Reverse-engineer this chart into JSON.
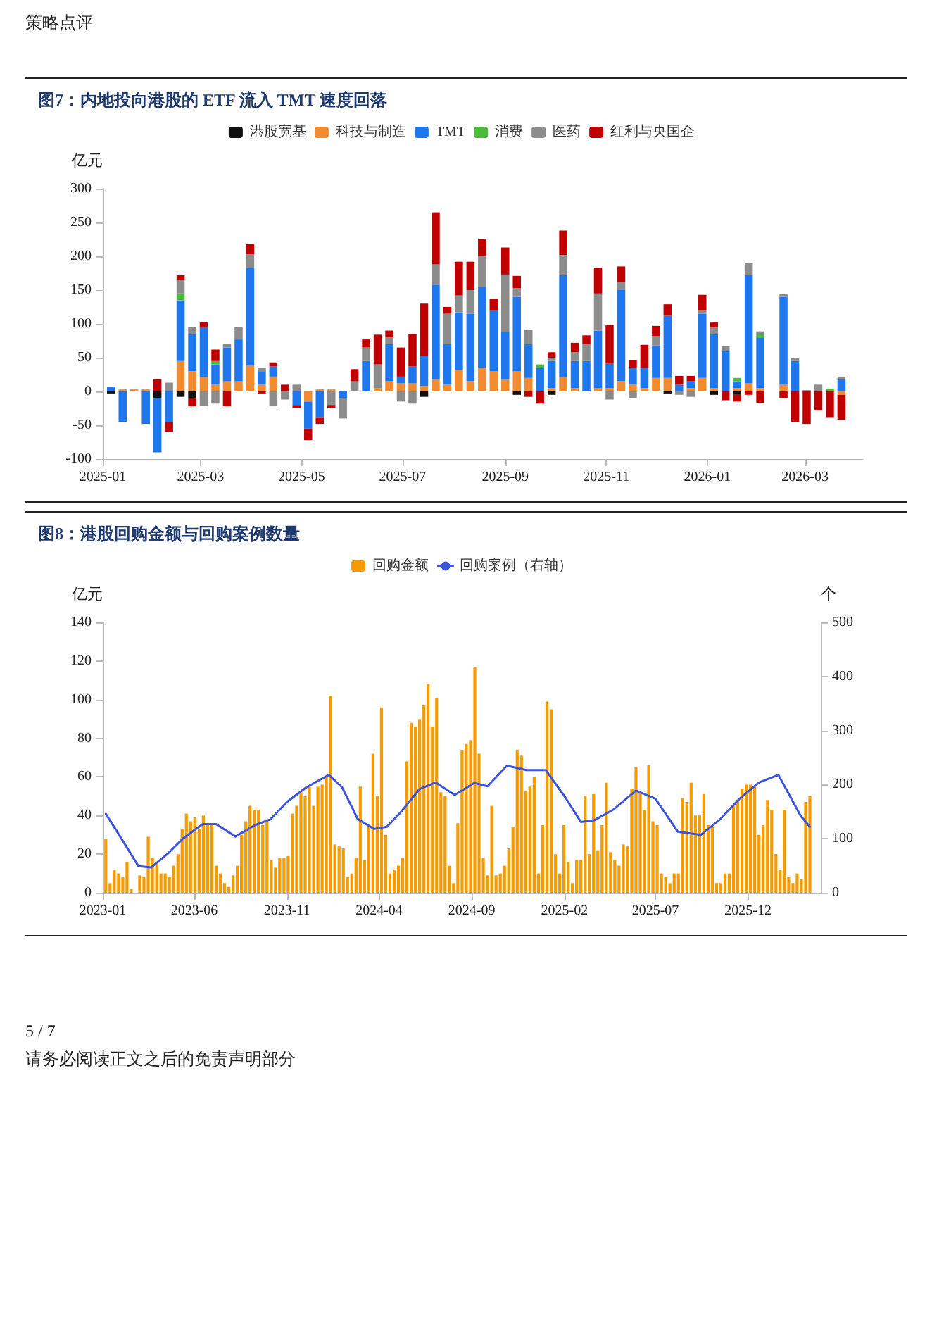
{
  "chart_data": [
    {
      "type": "bar",
      "title": "图7：内地投向港股的 ETF 流入 TMT 速度回落",
      "annotations": [
        "策略点评"
      ],
      "ylabel": "亿元",
      "stacked": true,
      "legend": "top",
      "x": [
        "2025-01-06",
        "2025-01-13",
        "2025-01-20",
        "2025-01-27",
        "2025-02-03",
        "2025-02-10",
        "2025-02-17",
        "2025-02-24",
        "2025-03-03",
        "2025-03-10",
        "2025-03-17",
        "2025-03-24",
        "2025-03-31",
        "2025-04-07",
        "2025-04-14",
        "2025-04-21",
        "2025-04-28",
        "2025-05-05",
        "2025-05-12",
        "2025-05-19",
        "2025-05-26",
        "2025-06-02",
        "2025-06-09",
        "2025-06-16",
        "2025-06-23",
        "2025-06-30",
        "2025-07-07",
        "2025-07-14",
        "2025-07-21",
        "2025-07-28",
        "2025-08-04",
        "2025-08-11",
        "2025-08-18",
        "2025-08-25",
        "2025-09-01",
        "2025-09-08",
        "2025-09-15",
        "2025-09-22",
        "2025-09-29",
        "2025-10-06",
        "2025-10-13",
        "2025-10-20",
        "2025-10-27",
        "2025-11-03",
        "2025-11-10",
        "2025-11-17",
        "2025-11-24",
        "2025-12-01",
        "2025-12-08",
        "2025-12-15",
        "2025-12-22",
        "2025-12-29",
        "2026-01-05",
        "2026-01-12",
        "2026-01-19",
        "2026-01-26",
        "2026-02-02",
        "2026-02-09",
        "2026-02-16",
        "2026-02-23",
        "2026-03-02",
        "2026-03-09",
        "2026-03-16",
        "2026-03-23"
      ],
      "xlim": [
        "2025-01-01",
        "2026-04-05"
      ],
      "xticks": [
        "2025-01",
        "2025-03",
        "2025-05",
        "2025-07",
        "2025-09",
        "2025-11",
        "2026-01",
        "2026-03"
      ],
      "ylim": [
        -100,
        300
      ],
      "yticks": [
        -100,
        -50,
        0,
        50,
        100,
        150,
        200,
        250,
        300
      ],
      "series": [
        {
          "name": "港股宽基",
          "color": "#111111",
          "values": [
            -3,
            0,
            0,
            0,
            -10,
            0,
            -8,
            -10,
            0,
            0,
            0,
            0,
            0,
            0,
            0,
            0,
            0,
            0,
            0,
            0,
            0,
            0,
            0,
            0,
            0,
            0,
            0,
            -8,
            0,
            0,
            0,
            0,
            0,
            0,
            0,
            -5,
            0,
            0,
            -5,
            0,
            0,
            0,
            0,
            0,
            0,
            0,
            0,
            0,
            -3,
            0,
            0,
            0,
            -5,
            0,
            -5,
            0,
            0,
            0,
            0,
            0,
            0,
            0,
            0,
            0
          ]
        },
        {
          "name": "科技与制造",
          "color": "#f28a30",
          "values": [
            0,
            3,
            3,
            3,
            0,
            0,
            45,
            30,
            22,
            10,
            15,
            15,
            38,
            10,
            22,
            0,
            0,
            -15,
            3,
            3,
            0,
            0,
            0,
            5,
            15,
            12,
            12,
            8,
            18,
            10,
            32,
            15,
            35,
            30,
            18,
            30,
            20,
            0,
            5,
            22,
            5,
            0,
            5,
            5,
            15,
            10,
            5,
            20,
            20,
            0,
            5,
            20,
            5,
            0,
            5,
            12,
            5,
            0,
            10,
            0,
            0,
            0,
            0,
            -5
          ]
        },
        {
          "name": "TMT",
          "color": "#1f77f0",
          "values": [
            7,
            -45,
            0,
            -48,
            -80,
            -45,
            90,
            55,
            73,
            30,
            50,
            62,
            145,
            20,
            15,
            0,
            -20,
            -40,
            -38,
            0,
            -10,
            0,
            45,
            0,
            55,
            10,
            25,
            45,
            140,
            60,
            85,
            100,
            120,
            90,
            70,
            110,
            50,
            35,
            40,
            150,
            40,
            45,
            85,
            36,
            135,
            25,
            30,
            48,
            92,
            10,
            10,
            95,
            80,
            60,
            10,
            160,
            75,
            0,
            130,
            45,
            0,
            0,
            0,
            18
          ]
        },
        {
          "name": "消费",
          "color": "#4cbb3c",
          "values": [
            0,
            0,
            0,
            0,
            0,
            0,
            10,
            0,
            0,
            5,
            0,
            0,
            0,
            0,
            0,
            0,
            0,
            0,
            0,
            0,
            0,
            0,
            0,
            0,
            0,
            0,
            0,
            0,
            0,
            0,
            0,
            0,
            0,
            0,
            0,
            0,
            0,
            5,
            0,
            0,
            0,
            0,
            0,
            0,
            0,
            0,
            0,
            0,
            0,
            0,
            0,
            0,
            0,
            0,
            5,
            0,
            5,
            0,
            0,
            0,
            0,
            0,
            4,
            0
          ]
        },
        {
          "name": "医药",
          "color": "#8c8c8c",
          "values": [
            0,
            0,
            0,
            0,
            0,
            13,
            20,
            10,
            -22,
            -18,
            5,
            18,
            20,
            5,
            -22,
            -12,
            10,
            0,
            0,
            -20,
            -30,
            15,
            20,
            35,
            10,
            -15,
            -18,
            0,
            30,
            45,
            25,
            35,
            45,
            0,
            85,
            13,
            21,
            0,
            5,
            30,
            13,
            25,
            55,
            -12,
            12,
            -10,
            0,
            14,
            0,
            -5,
            -8,
            5,
            10,
            7,
            0,
            18,
            4,
            0,
            4,
            4,
            2,
            10,
            0,
            4
          ]
        },
        {
          "name": "红利与央国企",
          "color": "#c00000",
          "values": [
            0,
            0,
            0,
            0,
            18,
            -15,
            7,
            -12,
            7,
            17,
            -22,
            0,
            15,
            -3,
            6,
            10,
            -5,
            -17,
            -10,
            -5,
            0,
            18,
            13,
            44,
            10,
            43,
            48,
            77,
            77,
            10,
            50,
            42,
            26,
            17,
            40,
            18,
            -8,
            -18,
            8,
            36,
            14,
            13,
            38,
            58,
            23,
            11,
            34,
            15,
            17,
            13,
            8,
            23,
            7,
            -13,
            -10,
            -5,
            -17,
            0,
            -10,
            -45,
            -48,
            -28,
            -38,
            -37
          ]
        }
      ]
    },
    {
      "type": "bar",
      "title": "图8：港股回购金额与回购案例数量",
      "annotations": [
        "5 / 7",
        "请务必阅读正文之后的免责声明部分"
      ],
      "ylabel": "亿元",
      "y2label": "个",
      "legend": "top",
      "x": [
        "2023-01-06",
        "2023-01-13",
        "2023-01-20",
        "2023-01-27",
        "2023-02-03",
        "2023-02-10",
        "2023-02-17",
        "2023-02-24",
        "2023-03-03",
        "2023-03-10",
        "2023-03-17",
        "2023-03-24",
        "2023-03-31",
        "2023-04-07",
        "2023-04-14",
        "2023-04-21",
        "2023-04-28",
        "2023-05-05",
        "2023-05-12",
        "2023-05-19",
        "2023-05-26",
        "2023-06-02",
        "2023-06-09",
        "2023-06-16",
        "2023-06-23",
        "2023-06-30",
        "2023-07-07",
        "2023-07-14",
        "2023-07-21",
        "2023-07-28",
        "2023-08-04",
        "2023-08-11",
        "2023-08-18",
        "2023-08-25",
        "2023-09-01",
        "2023-09-08",
        "2023-09-15",
        "2023-09-22",
        "2023-09-29",
        "2023-10-06",
        "2023-10-13",
        "2023-10-20",
        "2023-10-27",
        "2023-11-03",
        "2023-11-10",
        "2023-11-17",
        "2023-11-24",
        "2023-12-01",
        "2023-12-08",
        "2023-12-15",
        "2023-12-22",
        "2023-12-29",
        "2024-01-05",
        "2024-01-12",
        "2024-01-19",
        "2024-01-26",
        "2024-02-02",
        "2024-02-09",
        "2024-02-16",
        "2024-02-23",
        "2024-03-01",
        "2024-03-08",
        "2024-03-15",
        "2024-03-22",
        "2024-03-29",
        "2024-04-05",
        "2024-04-12",
        "2024-04-19",
        "2024-04-26",
        "2024-05-03",
        "2024-05-10",
        "2024-05-17",
        "2024-05-24",
        "2024-05-31",
        "2024-06-07",
        "2024-06-14",
        "2024-06-21",
        "2024-06-28",
        "2024-07-05",
        "2024-07-12",
        "2024-07-19",
        "2024-07-26",
        "2024-08-02",
        "2024-08-09",
        "2024-08-16",
        "2024-08-23",
        "2024-08-30",
        "2024-09-06",
        "2024-09-13",
        "2024-09-20",
        "2024-09-27",
        "2024-10-04",
        "2024-10-11",
        "2024-10-18",
        "2024-10-25",
        "2024-11-01",
        "2024-11-08",
        "2024-11-15",
        "2024-11-22",
        "2024-11-29",
        "2024-12-06",
        "2024-12-13",
        "2024-12-20",
        "2024-12-27",
        "2025-01-03",
        "2025-01-10",
        "2025-01-17",
        "2025-01-24",
        "2025-01-31",
        "2025-02-07",
        "2025-02-14",
        "2025-02-21",
        "2025-02-28",
        "2025-03-07",
        "2025-03-14",
        "2025-03-21",
        "2025-03-28",
        "2025-04-04",
        "2025-04-11",
        "2025-04-18",
        "2025-04-25",
        "2025-05-02",
        "2025-05-09",
        "2025-05-16",
        "2025-05-23",
        "2025-05-30",
        "2025-06-06",
        "2025-06-13",
        "2025-06-20",
        "2025-06-27",
        "2025-07-04",
        "2025-07-11",
        "2025-07-18",
        "2025-07-25",
        "2025-08-01",
        "2025-08-08",
        "2025-08-15",
        "2025-08-22",
        "2025-08-29",
        "2025-09-05",
        "2025-09-12",
        "2025-09-19",
        "2025-09-26",
        "2025-10-03",
        "2025-10-10",
        "2025-10-17",
        "2025-10-24",
        "2025-10-31",
        "2025-11-07",
        "2025-11-14",
        "2025-11-21",
        "2025-11-28",
        "2025-12-05",
        "2025-12-12",
        "2025-12-19",
        "2025-12-26",
        "2026-01-02",
        "2026-01-09",
        "2026-01-16",
        "2026-01-23",
        "2026-01-30",
        "2026-02-06",
        "2026-02-13",
        "2026-02-20",
        "2026-02-27",
        "2026-03-06",
        "2026-03-13"
      ],
      "xlim": [
        "2023-01-01",
        "2026-03-31"
      ],
      "xticks": [
        "2023-01",
        "2023-06",
        "2023-11",
        "2024-04",
        "2024-09",
        "2025-02",
        "2025-07",
        "2025-12"
      ],
      "ylim": [
        0,
        140
      ],
      "yticks": [
        0,
        20,
        40,
        60,
        80,
        100,
        120,
        140
      ],
      "y2lim": [
        0,
        500
      ],
      "y2ticks": [
        0,
        100,
        200,
        300,
        400,
        500
      ],
      "series": [
        {
          "name": "回购金额",
          "color": "#f59b00",
          "values": [
            28,
            5,
            12,
            10,
            8,
            16,
            2,
            0,
            9,
            8,
            29,
            18,
            15,
            10,
            10,
            8,
            14,
            20,
            33,
            41,
            37,
            39,
            33,
            40,
            35,
            35,
            14,
            10,
            5,
            3,
            9,
            14,
            30,
            37,
            45,
            43,
            43,
            35,
            38,
            17,
            13,
            18,
            18,
            19,
            41,
            45,
            52,
            50,
            55,
            45,
            55,
            56,
            60,
            102,
            25,
            24,
            23,
            8,
            10,
            18,
            55,
            17,
            35,
            72,
            50,
            96,
            30,
            10,
            12,
            14,
            18,
            68,
            88,
            86,
            90,
            97,
            108,
            86,
            101,
            52,
            50,
            14,
            5,
            36,
            74,
            77,
            79,
            117,
            72,
            18,
            9,
            45,
            9,
            10,
            14,
            23,
            34,
            74,
            71,
            53,
            55,
            60,
            10,
            35,
            99,
            95,
            20,
            10,
            35,
            16,
            5,
            17,
            17,
            50,
            20,
            51,
            22,
            35,
            57,
            21,
            17,
            14,
            25,
            24,
            54,
            65,
            52,
            43,
            66,
            37,
            35,
            10,
            8,
            5,
            10,
            10,
            49,
            47,
            57,
            40,
            40,
            51,
            35,
            34,
            5,
            5,
            10,
            10,
            45,
            48,
            54,
            56,
            56,
            55,
            30,
            35,
            48,
            43,
            20,
            12,
            43,
            8,
            5,
            10,
            7,
            47,
            50
          ]
        },
        {
          "name": "回购案例（右轴）",
          "type": "line",
          "axis": "y2",
          "color": "#3d55d9",
          "marker": "none",
          "line_style": "solid",
          "x": [
            "2023-01-06",
            "2023-01-28",
            "2023-03-01",
            "2023-03-22",
            "2023-04-18",
            "2023-05-14",
            "2023-06-15",
            "2023-07-07",
            "2023-08-08",
            "2023-09-09",
            "2023-10-05",
            "2023-11-01",
            "2023-12-03",
            "2024-01-09",
            "2024-01-31",
            "2024-02-26",
            "2024-03-24",
            "2024-04-14",
            "2024-05-06",
            "2024-06-07",
            "2024-07-03",
            "2024-08-04",
            "2024-09-05",
            "2024-09-27",
            "2024-10-29",
            "2024-11-30",
            "2025-01-01",
            "2025-02-02",
            "2025-02-28",
            "2025-03-22",
            "2025-04-23",
            "2025-05-30",
            "2025-07-01",
            "2025-08-07",
            "2025-09-14",
            "2025-10-16",
            "2025-11-17",
            "2025-12-19",
            "2026-01-20",
            "2026-02-26",
            "2026-03-13"
          ],
          "values": [
            146,
            107,
            49,
            47,
            72,
            101,
            127,
            127,
            104,
            125,
            136,
            168,
            195,
            218,
            195,
            136,
            118,
            122,
            148,
            192,
            204,
            181,
            203,
            197,
            235,
            227,
            227,
            177,
            131,
            134,
            154,
            189,
            174,
            113,
            107,
            136,
            174,
            204,
            218,
            142,
            122
          ]
        }
      ]
    }
  ]
}
